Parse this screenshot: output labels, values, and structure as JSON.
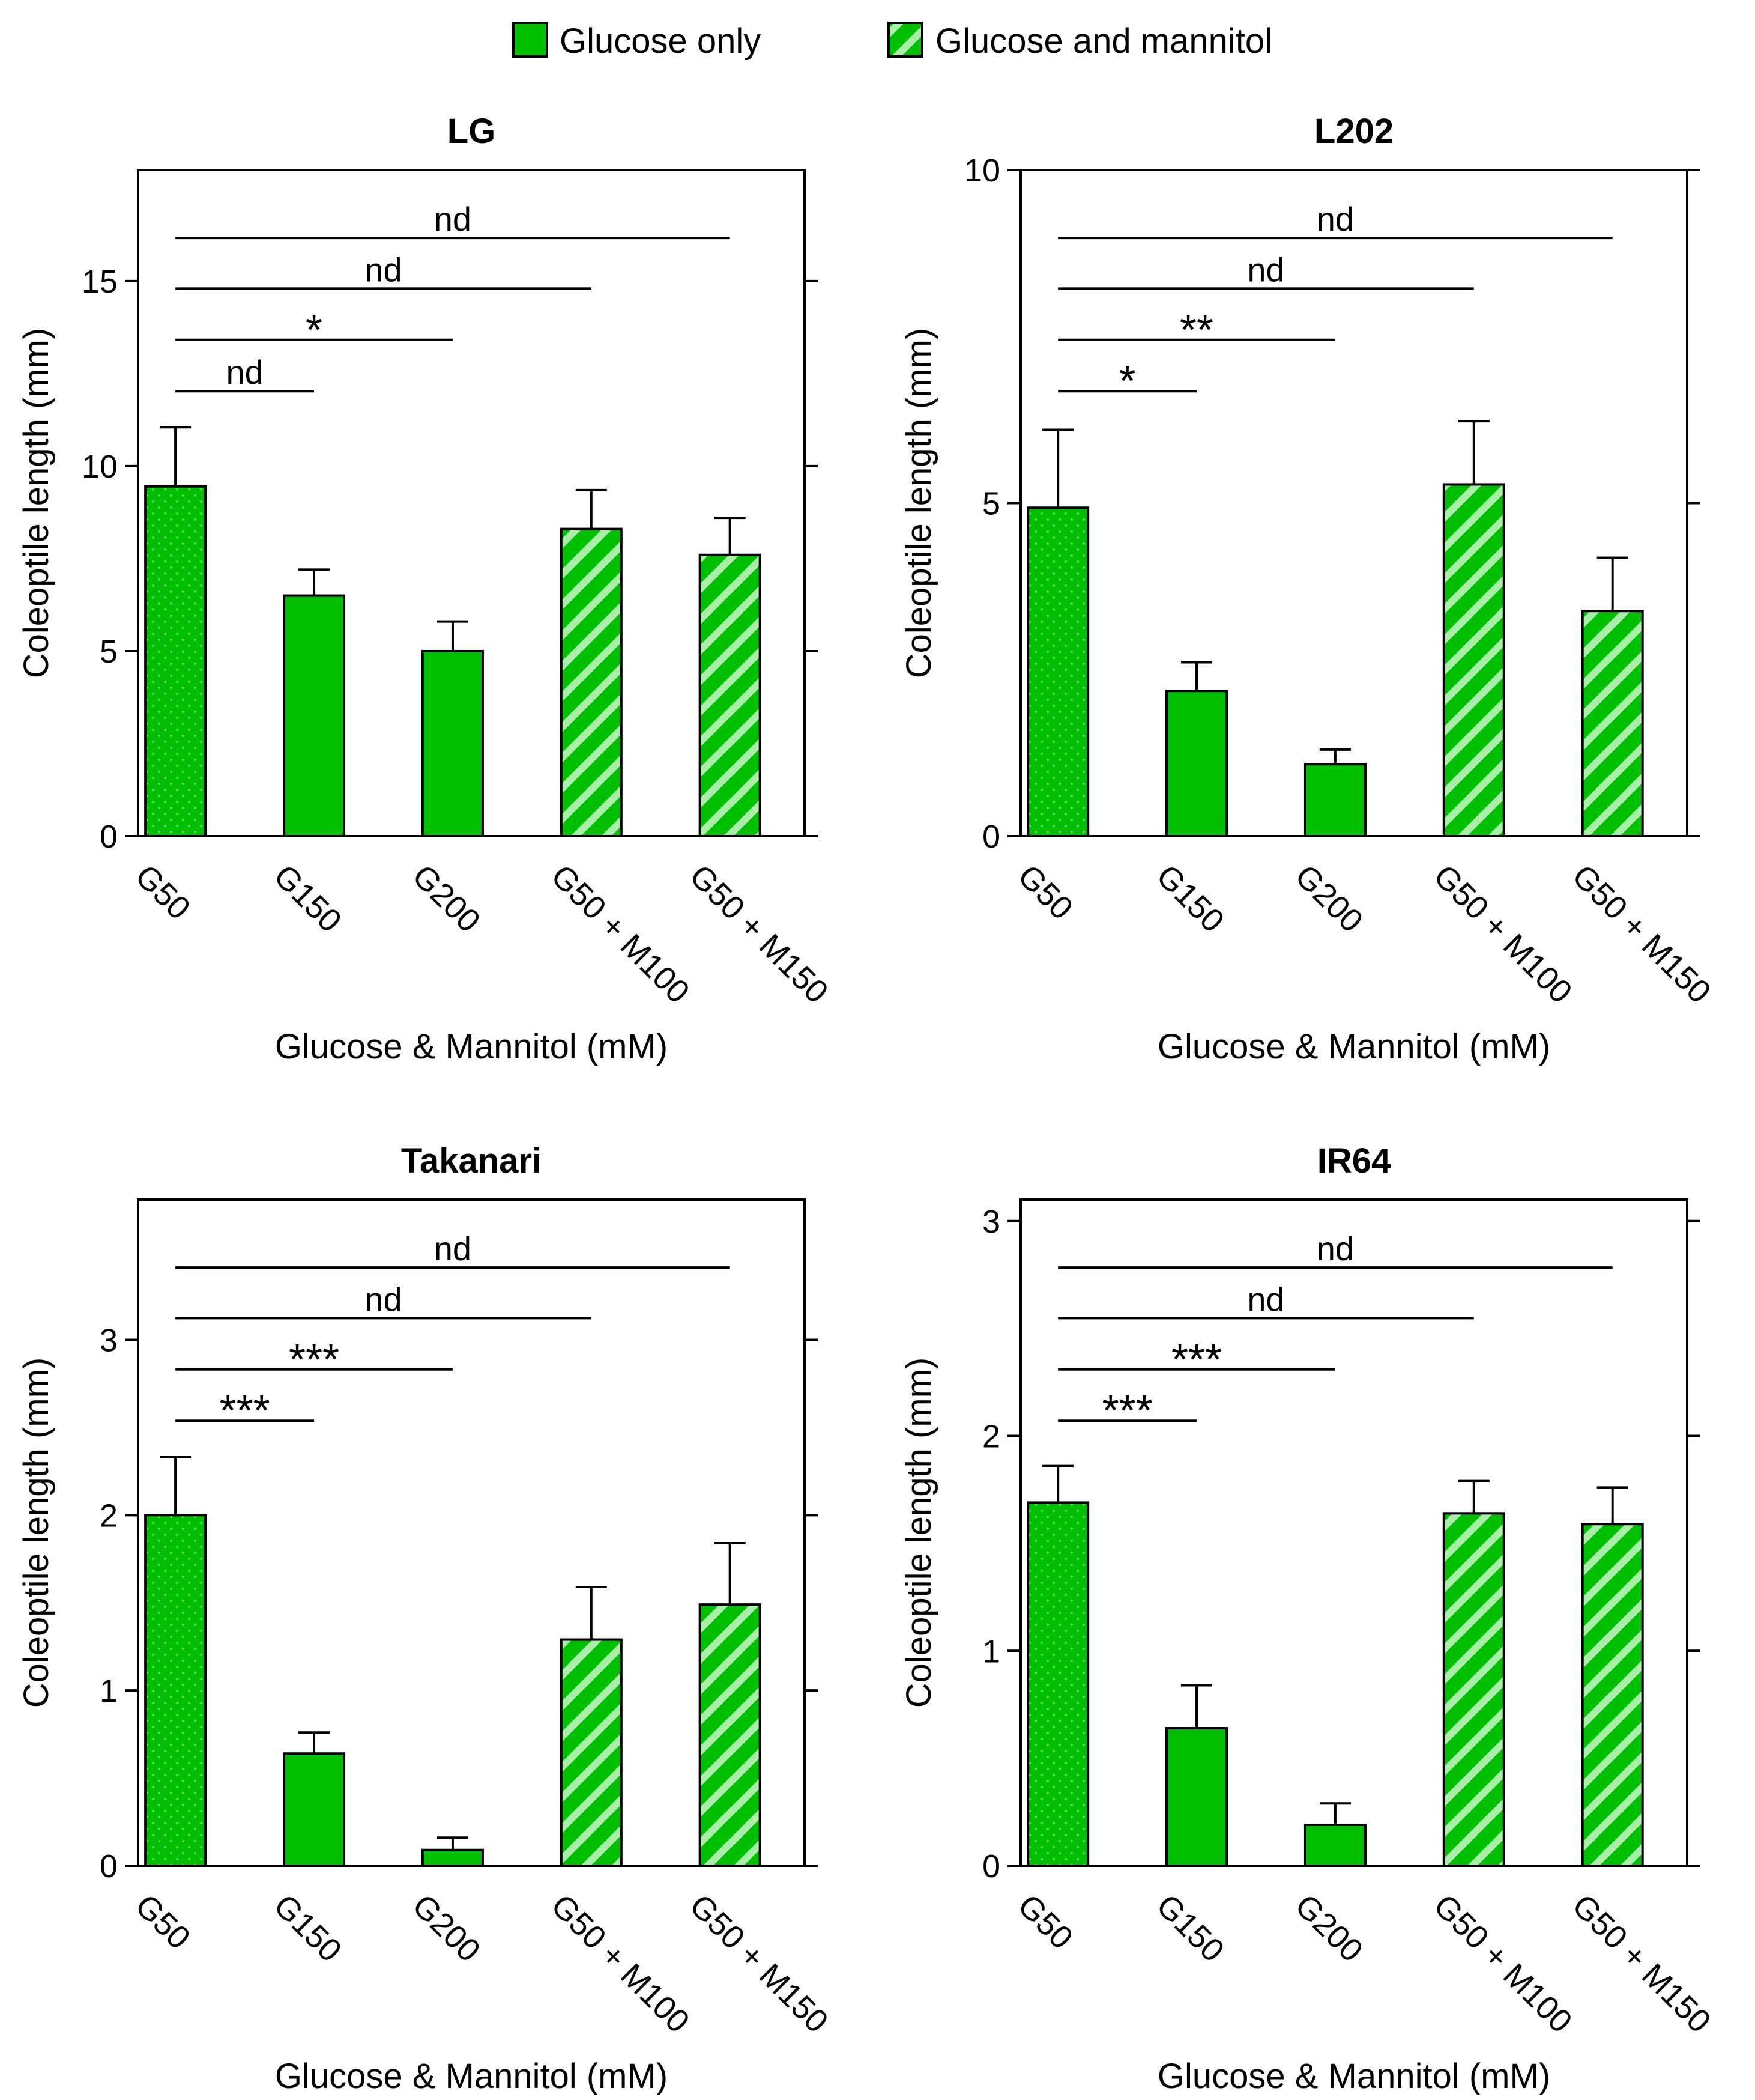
{
  "legend": [
    {
      "label": "Glucose only",
      "pattern": "solid"
    },
    {
      "label": "Glucose and mannitol",
      "pattern": "stripe"
    }
  ],
  "colors": {
    "bar": "#00bf00",
    "bar_light": "#a8f0a8",
    "dots": "#56d856",
    "stroke": "#000000"
  },
  "chart_data": [
    {
      "type": "bar",
      "title": "LG",
      "xlabel": "Glucose & Mannitol (mM)",
      "ylabel": "Coleoptile length (mm)",
      "ylim": [
        0,
        18
      ],
      "yticks": [
        0,
        5,
        10,
        15
      ],
      "categories": [
        "G50",
        "G150",
        "G200",
        "G50 + M100",
        "G50 + M150"
      ],
      "patterns": [
        "dots",
        "solid",
        "solid",
        "stripe",
        "stripe"
      ],
      "values": [
        9.45,
        6.5,
        5.0,
        8.3,
        7.6
      ],
      "errors": [
        1.6,
        0.7,
        0.8,
        1.05,
        1.0
      ],
      "comparisons": [
        {
          "from": 0,
          "to": 1,
          "label": "nd"
        },
        {
          "from": 0,
          "to": 2,
          "label": "*"
        },
        {
          "from": 0,
          "to": 3,
          "label": "nd"
        },
        {
          "from": 0,
          "to": 4,
          "label": "nd"
        }
      ]
    },
    {
      "type": "bar",
      "title": "L202",
      "xlabel": "Glucose & Mannitol (mM)",
      "ylabel": "Coleoptile length (mm)",
      "ylim": [
        0,
        10
      ],
      "yticks": [
        0,
        5,
        10
      ],
      "categories": [
        "G50",
        "G150",
        "G200",
        "G50 + M100",
        "G50 + M150"
      ],
      "patterns": [
        "dots",
        "solid",
        "solid",
        "stripe",
        "stripe"
      ],
      "values": [
        4.93,
        2.18,
        1.08,
        5.28,
        3.38
      ],
      "errors": [
        1.17,
        0.43,
        0.22,
        0.95,
        0.8
      ],
      "comparisons": [
        {
          "from": 0,
          "to": 1,
          "label": "*"
        },
        {
          "from": 0,
          "to": 2,
          "label": "**"
        },
        {
          "from": 0,
          "to": 3,
          "label": "nd"
        },
        {
          "from": 0,
          "to": 4,
          "label": "nd"
        }
      ]
    },
    {
      "type": "bar",
      "title": "Takanari",
      "xlabel": "Glucose & Mannitol (mM)",
      "ylabel": "Coleoptile length (mm)",
      "ylim": [
        0,
        3.8
      ],
      "yticks": [
        0,
        1,
        2,
        3
      ],
      "categories": [
        "G50",
        "G150",
        "G200",
        "G50 + M100",
        "G50 + M150"
      ],
      "patterns": [
        "dots",
        "solid",
        "solid",
        "stripe",
        "stripe"
      ],
      "values": [
        2.0,
        0.64,
        0.09,
        1.29,
        1.49
      ],
      "errors": [
        0.33,
        0.12,
        0.07,
        0.3,
        0.35
      ],
      "comparisons": [
        {
          "from": 0,
          "to": 1,
          "label": "***"
        },
        {
          "from": 0,
          "to": 2,
          "label": "***"
        },
        {
          "from": 0,
          "to": 3,
          "label": "nd"
        },
        {
          "from": 0,
          "to": 4,
          "label": "nd"
        }
      ]
    },
    {
      "type": "bar",
      "title": "IR64",
      "xlabel": "Glucose & Mannitol (mM)",
      "ylabel": "Coleoptile length (mm)",
      "ylim": [
        0,
        3.1
      ],
      "yticks": [
        0,
        1,
        2,
        3
      ],
      "categories": [
        "G50",
        "G150",
        "G200",
        "G50 + M100",
        "G50 + M150"
      ],
      "patterns": [
        "dots",
        "solid",
        "solid",
        "stripe",
        "stripe"
      ],
      "values": [
        1.69,
        0.64,
        0.19,
        1.64,
        1.59
      ],
      "errors": [
        0.17,
        0.2,
        0.1,
        0.15,
        0.17
      ],
      "comparisons": [
        {
          "from": 0,
          "to": 1,
          "label": "***"
        },
        {
          "from": 0,
          "to": 2,
          "label": "***"
        },
        {
          "from": 0,
          "to": 3,
          "label": "nd"
        },
        {
          "from": 0,
          "to": 4,
          "label": "nd"
        }
      ]
    }
  ]
}
